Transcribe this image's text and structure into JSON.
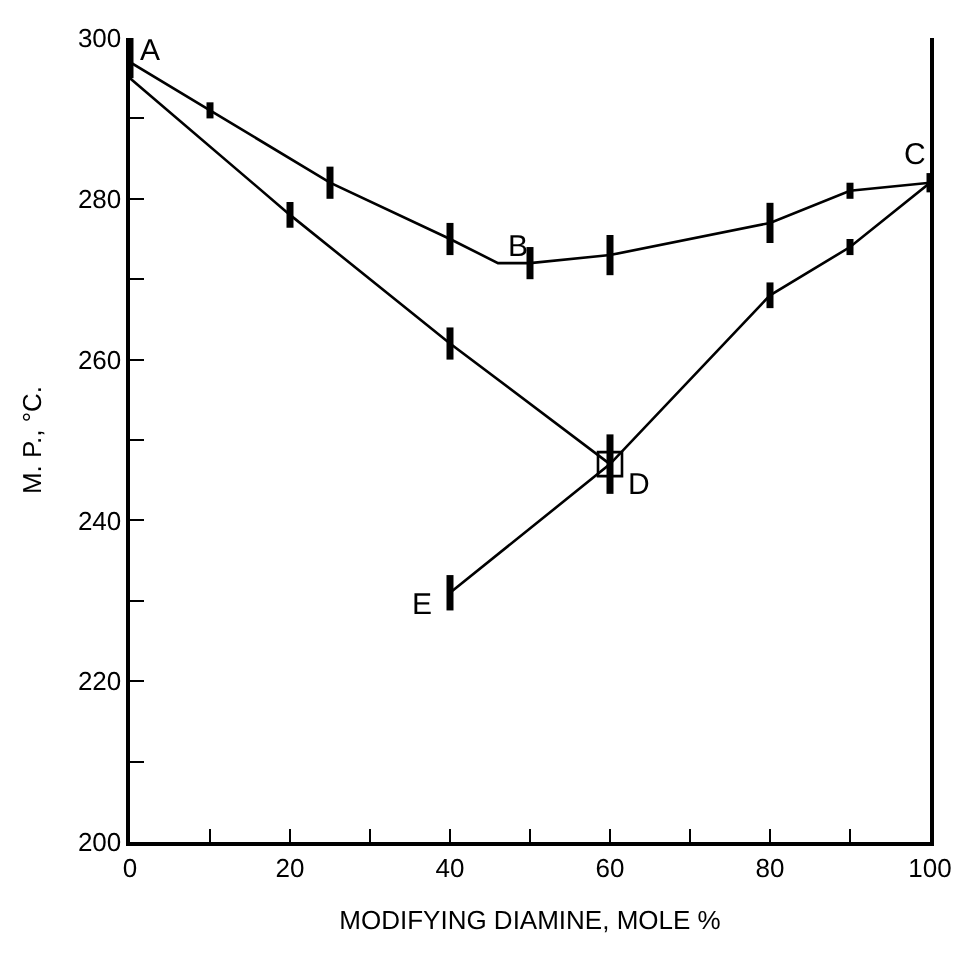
{
  "chart_data": {
    "type": "line",
    "xlabel": "MODIFYING DIAMINE, MOLE %",
    "ylabel": "M. P., °C.",
    "xlim": [
      0,
      100
    ],
    "ylim": [
      200,
      300
    ],
    "xticks": [
      0,
      {
        "value": 10,
        "label": null
      },
      20,
      {
        "value": 30,
        "label": null
      },
      40,
      {
        "value": 50,
        "label": null
      },
      60,
      {
        "value": 70,
        "label": null
      },
      80,
      {
        "value": 90,
        "label": null
      },
      100
    ],
    "yticks": [
      200,
      {
        "value": 210,
        "label": null
      },
      220,
      {
        "value": 230,
        "label": null
      },
      240,
      {
        "value": 250,
        "label": null
      },
      260,
      {
        "value": 270,
        "label": null
      },
      280,
      {
        "value": 290,
        "label": null
      },
      300
    ],
    "marker": "none",
    "line_style": "solid",
    "series": [
      {
        "color": "#000000",
        "x": [
          0,
          10,
          25,
          40,
          46,
          50,
          60,
          80,
          90,
          100
        ],
        "values": [
          297,
          291,
          282,
          275,
          272,
          272,
          273,
          277,
          281,
          282
        ],
        "errors": [
          [
            295,
            300
          ],
          1,
          2,
          2,
          null,
          2,
          2.5,
          2.5,
          1,
          1.2
        ]
      },
      {
        "color": "#000000",
        "x": [
          0,
          20,
          40,
          60
        ],
        "values": [
          295,
          278,
          262,
          247
        ],
        "errors": [
          null,
          1.6,
          2,
          null
        ]
      },
      {
        "color": "#000000",
        "x": [
          40,
          60,
          80,
          90,
          100
        ],
        "values": [
          231,
          247,
          268,
          274,
          282
        ],
        "errors": [
          2.2,
          null,
          1.6,
          1,
          null
        ]
      },
      {
        "type": "scatter",
        "marker": "square",
        "color": "#000000",
        "x": [
          60
        ],
        "values": [
          247
        ],
        "errors": [
          3.7
        ]
      }
    ],
    "annotations": [
      {
        "text": "A",
        "x": 0,
        "y": 297
      },
      {
        "text": "B",
        "x": 46,
        "y": 272
      },
      {
        "text": "C",
        "x": 100,
        "y": 282
      },
      {
        "text": "D",
        "x": 60,
        "y": 247
      },
      {
        "text": "E",
        "x": 40,
        "y": 231
      }
    ]
  }
}
